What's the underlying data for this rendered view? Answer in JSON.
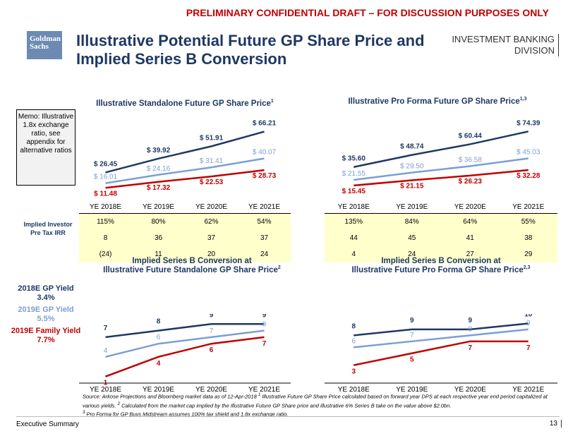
{
  "banner": "PRELIMINARY CONFIDENTIAL DRAFT – FOR DISCUSSION PURPOSES ONLY",
  "logo": {
    "line1": "Goldman",
    "line2": "Sachs"
  },
  "title": {
    "line1": "Illustrative Potential Future GP Share Price and",
    "line2": "Implied Series B Conversion"
  },
  "division": {
    "line1": "INVESTMENT BANKING",
    "line2": "DIVISION"
  },
  "memo": "Memo: Illustrative 1.8x exchange ratio, see appendix for alternative ratios",
  "irr_label": "Implied Investor Pre Tax IRR",
  "yields": [
    {
      "label": "2018E GP Yield",
      "value": "3.4%",
      "color": "#1f3864"
    },
    {
      "label": "2019E GP Yield",
      "value": "5.5%",
      "color": "#7b9fd4"
    },
    {
      "label": "2019E Family Yield",
      "value": "7.7%",
      "color": "#c00000"
    }
  ],
  "colors": {
    "dark": "#1f3864",
    "light": "#7b9fd4",
    "red": "#c00000"
  },
  "tables": {
    "standalone": {
      "headers": [
        "YE 2018E",
        "YE 2019E",
        "YE 2020E",
        "YE 2021E"
      ],
      "rows": [
        [
          "115%",
          "80%",
          "62%",
          "54%"
        ],
        [
          "8",
          "36",
          "37",
          "37"
        ],
        [
          "(24)",
          "11",
          "20",
          "24"
        ]
      ]
    },
    "proforma": {
      "headers": [
        "YE 2018E",
        "YE 2019E",
        "YE 2020E",
        "YE 2021E"
      ],
      "rows": [
        [
          "135%",
          "84%",
          "64%",
          "55%"
        ],
        [
          "44",
          "45",
          "41",
          "38"
        ],
        [
          "4",
          "24",
          "27",
          "29"
        ]
      ]
    }
  },
  "chart_data": [
    {
      "id": "standalone_price",
      "type": "line",
      "title": "Illustrative Standalone Future GP Share Price",
      "title_sup": "1",
      "categories": [
        "YE 2018E",
        "YE 2019E",
        "YE 2020E",
        "YE 2021E"
      ],
      "series": [
        {
          "color": "#1f3864",
          "values": [
            26.45,
            39.92,
            51.91,
            66.21
          ],
          "labels": [
            "$ 26.45",
            "$ 39.92",
            "$ 51.91",
            "$ 66.21"
          ]
        },
        {
          "color": "#7b9fd4",
          "values": [
            16.01,
            24.16,
            31.41,
            40.07
          ],
          "labels": [
            "$ 16.01",
            "$ 24.16",
            "$ 31.41",
            "$ 40.07"
          ]
        },
        {
          "color": "#c00000",
          "values": [
            11.48,
            17.32,
            22.53,
            28.73
          ],
          "labels": [
            "$ 11.48",
            "$ 17.32",
            "$ 22.53",
            "$ 28.73"
          ]
        }
      ]
    },
    {
      "id": "proforma_price",
      "type": "line",
      "title": "Illustrative Pro Forma Future GP Share Price",
      "title_sup": "1,3",
      "categories": [
        "YE 2018E",
        "YE 2019E",
        "YE 2020E",
        "YE 2021E"
      ],
      "series": [
        {
          "color": "#1f3864",
          "values": [
            35.6,
            48.74,
            60.44,
            74.39
          ],
          "labels": [
            "$ 35.60",
            "$ 48.74",
            "$ 60.44",
            "$ 74.39"
          ]
        },
        {
          "color": "#7b9fd4",
          "values": [
            21.55,
            29.5,
            36.58,
            45.03
          ],
          "labels": [
            "$ 21.55",
            "$ 29.50",
            "$ 36.58",
            "$ 45.03"
          ]
        },
        {
          "color": "#c00000",
          "values": [
            15.45,
            21.15,
            26.23,
            32.28
          ],
          "labels": [
            "$ 15.45",
            "$ 21.15",
            "$ 26.23",
            "$ 32.28"
          ]
        }
      ]
    },
    {
      "id": "standalone_conv",
      "type": "line",
      "title": "Implied Series B Conversion at",
      "title2": "Illustrative Future Standalone GP Share Price",
      "title_sup": "2",
      "categories": [
        "YE 2018E",
        "YE 2019E",
        "YE 2020E",
        "YE 2021E"
      ],
      "series": [
        {
          "color": "#1f3864",
          "values": [
            7,
            8,
            9,
            9
          ],
          "labels": [
            "7",
            "8",
            "9",
            "9"
          ]
        },
        {
          "color": "#7b9fd4",
          "values": [
            4,
            6,
            7,
            8
          ],
          "labels": [
            "4",
            "6",
            "7",
            "8"
          ]
        },
        {
          "color": "#c00000",
          "values": [
            1,
            4,
            6,
            7
          ],
          "labels": [
            "1",
            "4",
            "6",
            "7"
          ]
        }
      ]
    },
    {
      "id": "proforma_conv",
      "type": "line",
      "title": "Implied Series B Conversion at",
      "title2": "Illustrative Future Pro Forma GP Share Price",
      "title_sup": "2,3",
      "categories": [
        "YE 2018E",
        "YE 2019E",
        "YE 2020E",
        "YE 2021E"
      ],
      "series": [
        {
          "color": "#1f3864",
          "values": [
            8,
            9,
            9,
            10
          ],
          "labels": [
            "8",
            "9",
            "9",
            "10"
          ]
        },
        {
          "color": "#7b9fd4",
          "values": [
            6,
            7,
            8,
            9
          ],
          "labels": [
            "6",
            "7",
            "8",
            "9"
          ]
        },
        {
          "color": "#c00000",
          "values": [
            3,
            5,
            7,
            7
          ],
          "labels": [
            "3",
            "5",
            "7",
            "7"
          ]
        }
      ]
    }
  ],
  "source": {
    "line1": "Source: Arkose Projections and Bloomberg market data as of 12-Apr-2018",
    "note1": "Illustrative Future GP Share Price calculated based on forward year DPS at each respective year end period capitalized at various yields.",
    "note2": "Calculated from the market cap implied by the Illustrative Future GP Share price and illustrative 6% Series B take on the value above $2.0bn.",
    "note3": "Pro Forma for GP Buys Midstream assumes 100% tax shield and 1.8x exchange ratio."
  },
  "footer": {
    "left": "Executive Summary",
    "page": "13"
  }
}
